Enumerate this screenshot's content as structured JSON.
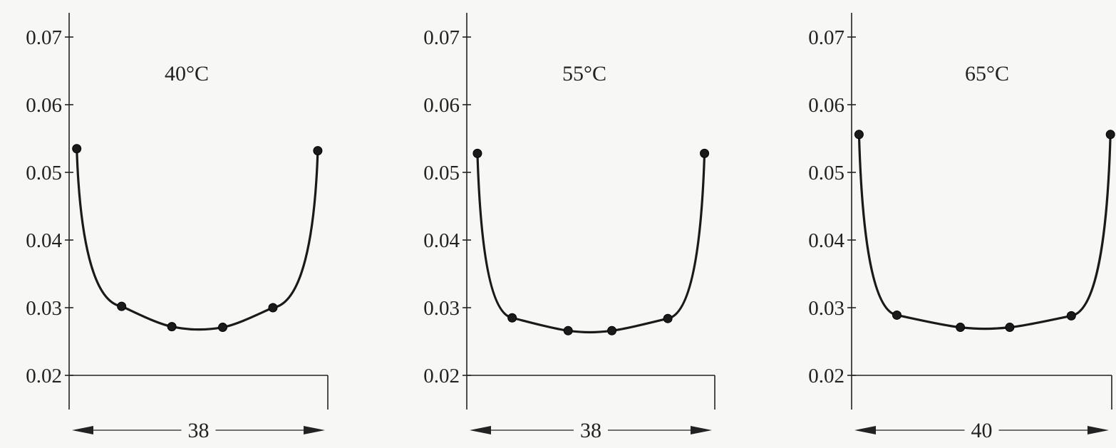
{
  "chart_data": [
    {
      "type": "line",
      "title": "40°C",
      "y_ticks": [
        "0.02",
        "0.03",
        "0.04",
        "0.05",
        "0.06",
        "0.07"
      ],
      "ylim": [
        0.02,
        0.07
      ],
      "xlim": [
        0,
        38
      ],
      "span_label": "38",
      "x": [
        0.5,
        7.2,
        14.7,
        22.3,
        29.8,
        36.5
      ],
      "values": [
        0.0535,
        0.0302,
        0.0272,
        0.0271,
        0.03,
        0.0532
      ],
      "grid": false
    },
    {
      "type": "line",
      "title": "55°C",
      "y_ticks": [
        "0.02",
        "0.03",
        "0.04",
        "0.05",
        "0.06",
        "0.07"
      ],
      "ylim": [
        0.02,
        0.07
      ],
      "xlim": [
        0,
        38
      ],
      "span_label": "38",
      "x": [
        1.1,
        6.5,
        15.2,
        22.0,
        30.7,
        36.4
      ],
      "values": [
        0.0528,
        0.0285,
        0.0266,
        0.0266,
        0.0284,
        0.0528
      ],
      "grid": false
    },
    {
      "type": "line",
      "title": "65°C",
      "y_ticks": [
        "0.02",
        "0.03",
        "0.04",
        "0.05",
        "0.06",
        "0.07"
      ],
      "ylim": [
        0.02,
        0.07
      ],
      "xlim": [
        0,
        40
      ],
      "span_label": "40",
      "x": [
        0.6,
        6.5,
        16.4,
        24.1,
        33.7,
        39.8
      ],
      "values": [
        0.0556,
        0.0289,
        0.0271,
        0.0271,
        0.0288,
        0.0556
      ],
      "grid": false
    }
  ]
}
